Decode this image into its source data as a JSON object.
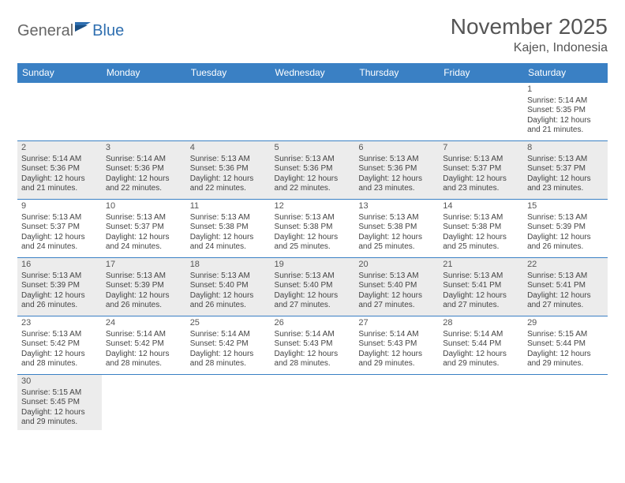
{
  "logo": {
    "part1": "General",
    "part2": "Blue"
  },
  "header": {
    "month_title": "November 2025",
    "location": "Kajen, Indonesia"
  },
  "colors": {
    "header_bg": "#3a80c4",
    "header_text": "#ffffff",
    "border": "#3a80c4",
    "shaded_bg": "#ececec",
    "body_text": "#444444",
    "logo_gray": "#666666",
    "logo_blue": "#2f6fb0"
  },
  "weekdays": [
    "Sunday",
    "Monday",
    "Tuesday",
    "Wednesday",
    "Thursday",
    "Friday",
    "Saturday"
  ],
  "weeks": [
    [
      null,
      null,
      null,
      null,
      null,
      null,
      {
        "day": "1",
        "sunrise": "Sunrise: 5:14 AM",
        "sunset": "Sunset: 5:35 PM",
        "daylight": "Daylight: 12 hours and 21 minutes."
      }
    ],
    [
      {
        "day": "2",
        "sunrise": "Sunrise: 5:14 AM",
        "sunset": "Sunset: 5:36 PM",
        "daylight": "Daylight: 12 hours and 21 minutes."
      },
      {
        "day": "3",
        "sunrise": "Sunrise: 5:14 AM",
        "sunset": "Sunset: 5:36 PM",
        "daylight": "Daylight: 12 hours and 22 minutes."
      },
      {
        "day": "4",
        "sunrise": "Sunrise: 5:13 AM",
        "sunset": "Sunset: 5:36 PM",
        "daylight": "Daylight: 12 hours and 22 minutes."
      },
      {
        "day": "5",
        "sunrise": "Sunrise: 5:13 AM",
        "sunset": "Sunset: 5:36 PM",
        "daylight": "Daylight: 12 hours and 22 minutes."
      },
      {
        "day": "6",
        "sunrise": "Sunrise: 5:13 AM",
        "sunset": "Sunset: 5:36 PM",
        "daylight": "Daylight: 12 hours and 23 minutes."
      },
      {
        "day": "7",
        "sunrise": "Sunrise: 5:13 AM",
        "sunset": "Sunset: 5:37 PM",
        "daylight": "Daylight: 12 hours and 23 minutes."
      },
      {
        "day": "8",
        "sunrise": "Sunrise: 5:13 AM",
        "sunset": "Sunset: 5:37 PM",
        "daylight": "Daylight: 12 hours and 23 minutes."
      }
    ],
    [
      {
        "day": "9",
        "sunrise": "Sunrise: 5:13 AM",
        "sunset": "Sunset: 5:37 PM",
        "daylight": "Daylight: 12 hours and 24 minutes."
      },
      {
        "day": "10",
        "sunrise": "Sunrise: 5:13 AM",
        "sunset": "Sunset: 5:37 PM",
        "daylight": "Daylight: 12 hours and 24 minutes."
      },
      {
        "day": "11",
        "sunrise": "Sunrise: 5:13 AM",
        "sunset": "Sunset: 5:38 PM",
        "daylight": "Daylight: 12 hours and 24 minutes."
      },
      {
        "day": "12",
        "sunrise": "Sunrise: 5:13 AM",
        "sunset": "Sunset: 5:38 PM",
        "daylight": "Daylight: 12 hours and 25 minutes."
      },
      {
        "day": "13",
        "sunrise": "Sunrise: 5:13 AM",
        "sunset": "Sunset: 5:38 PM",
        "daylight": "Daylight: 12 hours and 25 minutes."
      },
      {
        "day": "14",
        "sunrise": "Sunrise: 5:13 AM",
        "sunset": "Sunset: 5:38 PM",
        "daylight": "Daylight: 12 hours and 25 minutes."
      },
      {
        "day": "15",
        "sunrise": "Sunrise: 5:13 AM",
        "sunset": "Sunset: 5:39 PM",
        "daylight": "Daylight: 12 hours and 26 minutes."
      }
    ],
    [
      {
        "day": "16",
        "sunrise": "Sunrise: 5:13 AM",
        "sunset": "Sunset: 5:39 PM",
        "daylight": "Daylight: 12 hours and 26 minutes."
      },
      {
        "day": "17",
        "sunrise": "Sunrise: 5:13 AM",
        "sunset": "Sunset: 5:39 PM",
        "daylight": "Daylight: 12 hours and 26 minutes."
      },
      {
        "day": "18",
        "sunrise": "Sunrise: 5:13 AM",
        "sunset": "Sunset: 5:40 PM",
        "daylight": "Daylight: 12 hours and 26 minutes."
      },
      {
        "day": "19",
        "sunrise": "Sunrise: 5:13 AM",
        "sunset": "Sunset: 5:40 PM",
        "daylight": "Daylight: 12 hours and 27 minutes."
      },
      {
        "day": "20",
        "sunrise": "Sunrise: 5:13 AM",
        "sunset": "Sunset: 5:40 PM",
        "daylight": "Daylight: 12 hours and 27 minutes."
      },
      {
        "day": "21",
        "sunrise": "Sunrise: 5:13 AM",
        "sunset": "Sunset: 5:41 PM",
        "daylight": "Daylight: 12 hours and 27 minutes."
      },
      {
        "day": "22",
        "sunrise": "Sunrise: 5:13 AM",
        "sunset": "Sunset: 5:41 PM",
        "daylight": "Daylight: 12 hours and 27 minutes."
      }
    ],
    [
      {
        "day": "23",
        "sunrise": "Sunrise: 5:13 AM",
        "sunset": "Sunset: 5:42 PM",
        "daylight": "Daylight: 12 hours and 28 minutes."
      },
      {
        "day": "24",
        "sunrise": "Sunrise: 5:14 AM",
        "sunset": "Sunset: 5:42 PM",
        "daylight": "Daylight: 12 hours and 28 minutes."
      },
      {
        "day": "25",
        "sunrise": "Sunrise: 5:14 AM",
        "sunset": "Sunset: 5:42 PM",
        "daylight": "Daylight: 12 hours and 28 minutes."
      },
      {
        "day": "26",
        "sunrise": "Sunrise: 5:14 AM",
        "sunset": "Sunset: 5:43 PM",
        "daylight": "Daylight: 12 hours and 28 minutes."
      },
      {
        "day": "27",
        "sunrise": "Sunrise: 5:14 AM",
        "sunset": "Sunset: 5:43 PM",
        "daylight": "Daylight: 12 hours and 29 minutes."
      },
      {
        "day": "28",
        "sunrise": "Sunrise: 5:14 AM",
        "sunset": "Sunset: 5:44 PM",
        "daylight": "Daylight: 12 hours and 29 minutes."
      },
      {
        "day": "29",
        "sunrise": "Sunrise: 5:15 AM",
        "sunset": "Sunset: 5:44 PM",
        "daylight": "Daylight: 12 hours and 29 minutes."
      }
    ],
    [
      {
        "day": "30",
        "sunrise": "Sunrise: 5:15 AM",
        "sunset": "Sunset: 5:45 PM",
        "daylight": "Daylight: 12 hours and 29 minutes."
      },
      null,
      null,
      null,
      null,
      null,
      null
    ]
  ]
}
